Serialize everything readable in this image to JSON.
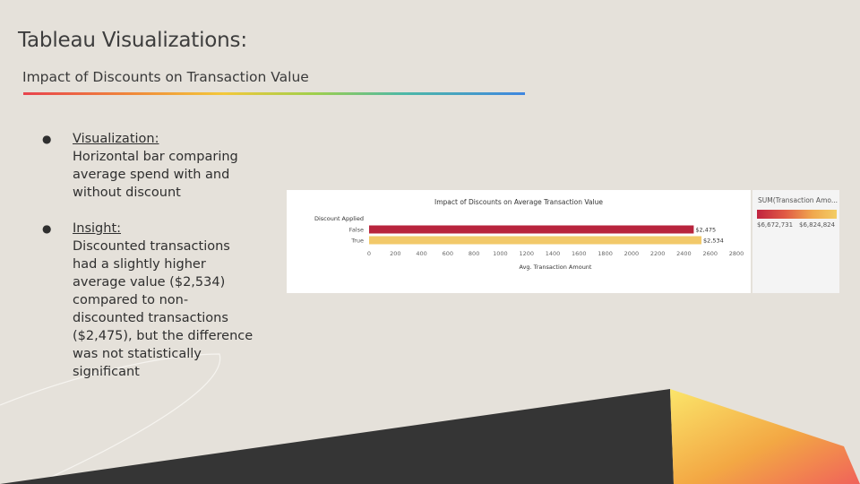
{
  "slide": {
    "title": "Tableau Visualizations:",
    "subtitle": "Impact of Discounts on Transaction Value"
  },
  "bullets": [
    {
      "heading": "Visualization:",
      "text": "Horizontal bar comparing average spend with and without discount"
    },
    {
      "heading": "Insight:",
      "text": "Discounted transactions had a slightly higher average value ($2,534) compared to non-discounted transactions ($2,475), but the difference was not statistically significant"
    }
  ],
  "chart_data": {
    "type": "bar",
    "orientation": "horizontal",
    "title": "Impact of Discounts on Average Transaction Value",
    "ylabel": "Discount Applied",
    "xlabel": "Avg. Transaction Amount",
    "categories": [
      "False",
      "True"
    ],
    "values": [
      2475,
      2534
    ],
    "data_labels": [
      "$2,475",
      "$2,534"
    ],
    "bar_colors": [
      "#b8243d",
      "#f2c96a"
    ],
    "xlim": [
      0,
      2800
    ],
    "xticks": [
      0,
      200,
      400,
      600,
      800,
      1000,
      1200,
      1400,
      1600,
      1800,
      2000,
      2200,
      2400,
      2600,
      2800
    ],
    "grid": false
  },
  "legend": {
    "title": "SUM(Transaction Amo...",
    "min_label": "$6,672,731",
    "max_label": "$6,824,824"
  }
}
